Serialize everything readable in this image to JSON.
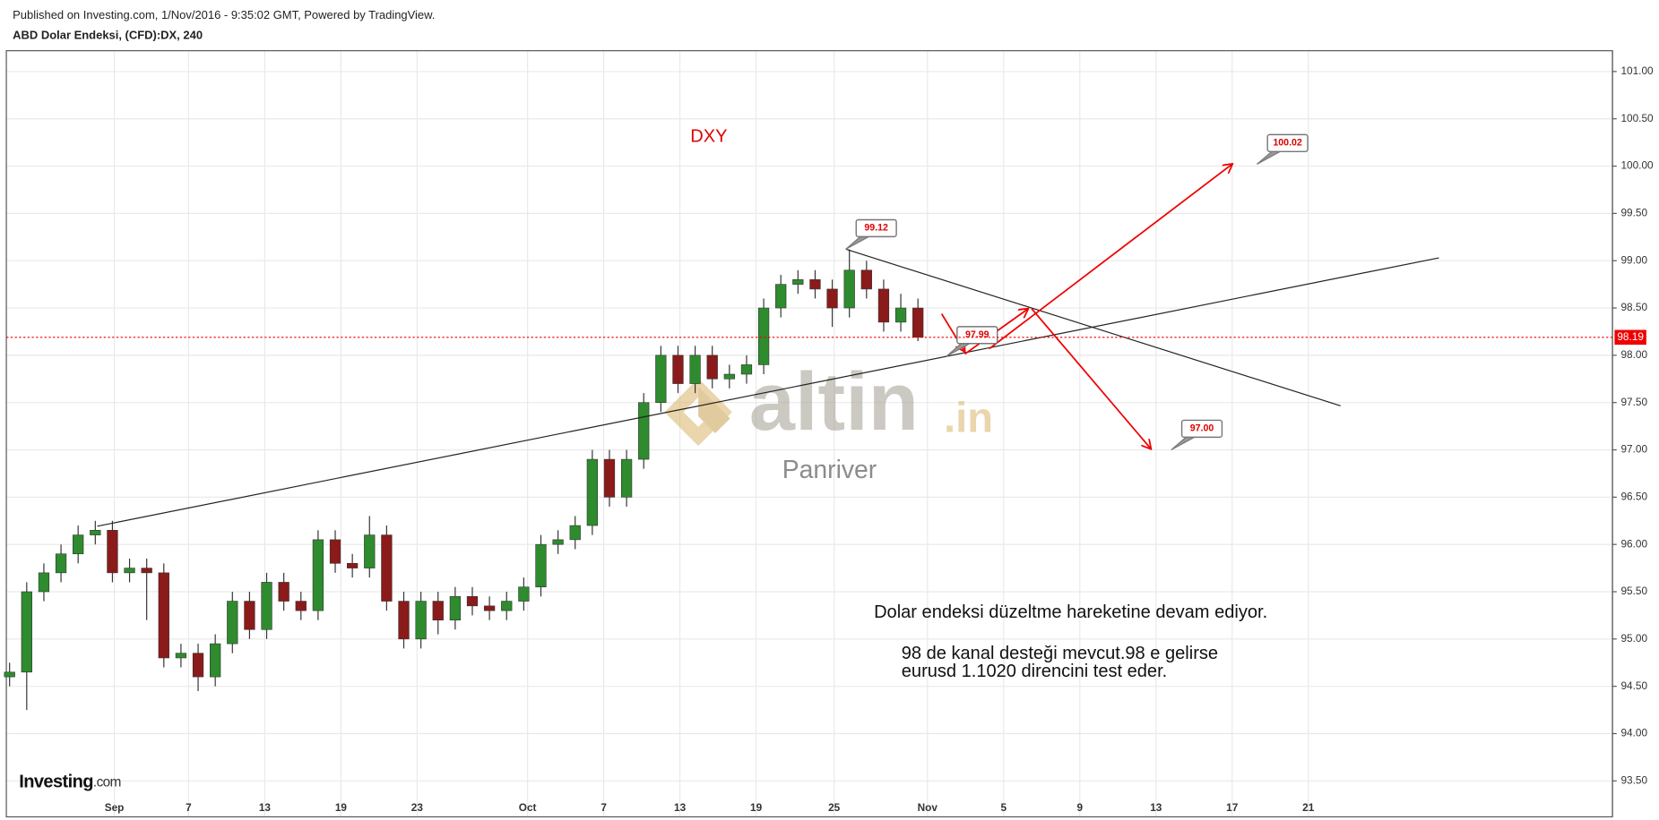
{
  "chart_data": {
    "type": "candlestick",
    "subtitle": "Published on Investing.com, 1/Nov/2016 - 9:35:02 GMT, Powered by TradingView.",
    "title": "ABD Dolar Endeksi, (CFD):DX, 240",
    "symbol_label": "DXY",
    "watermark": "altin",
    "watermark_suffix": ".in",
    "author": "Panriver",
    "comment": [
      "Dolar endeksi düzeltme hareketine devam ediyor.",
      "98 de kanal desteği mevcut.98 e gelirse",
      "eurusd 1.1020 direncini test eder."
    ],
    "logo": "Investing",
    "logo_suffix": ".com",
    "up_color": "#2e8b2e",
    "down_color": "#8b1a1a",
    "grid": true,
    "x": [
      -5.5,
      -4.6,
      -3.7,
      -2.8,
      -1.9,
      -1,
      -0.1,
      0.8,
      1.7,
      2.6,
      3.5,
      4.4,
      5.3,
      6.2,
      7.1,
      8,
      8.9,
      9.8,
      10.7,
      11.6,
      12.5,
      13.4,
      14.3,
      15.2,
      16.1,
      17,
      17.9,
      18.8,
      19.7,
      20.6,
      21.5,
      22.4,
      23.3,
      24.2,
      25.1,
      26,
      26.9,
      27.8,
      28.7,
      29.6,
      30.5,
      31.4,
      32.3,
      33.2,
      34.1,
      35,
      35.9,
      36.8,
      37.7,
      38.6,
      39.5,
      40.4,
      41.3,
      42.2
    ],
    "open": [
      94.6,
      94.65,
      95.5,
      95.7,
      95.9,
      96.1,
      96.15,
      95.7,
      95.75,
      95.7,
      94.8,
      94.85,
      94.6,
      94.95,
      95.4,
      95.1,
      95.6,
      95.4,
      95.3,
      96.05,
      95.8,
      95.75,
      96.1,
      95.4,
      95.0,
      95.4,
      95.2,
      95.45,
      95.35,
      95.3,
      95.4,
      95.55,
      96.0,
      96.05,
      96.2,
      96.9,
      96.5,
      96.9,
      97.5,
      98.0,
      97.7,
      98.0,
      97.75,
      97.8,
      97.9,
      98.5,
      98.75,
      98.8,
      98.7,
      98.5,
      98.9,
      98.7,
      98.35,
      98.5
    ],
    "high": [
      94.75,
      95.6,
      95.8,
      96.0,
      96.2,
      96.25,
      96.25,
      95.85,
      95.85,
      95.8,
      94.95,
      94.95,
      95.05,
      95.5,
      95.5,
      95.7,
      95.7,
      95.5,
      96.15,
      96.15,
      95.9,
      96.3,
      96.2,
      95.5,
      95.5,
      95.5,
      95.55,
      95.55,
      95.45,
      95.5,
      95.65,
      96.1,
      96.15,
      96.3,
      97.0,
      97.0,
      97.0,
      97.6,
      98.1,
      98.1,
      98.1,
      98.1,
      97.9,
      98.0,
      98.6,
      98.85,
      98.9,
      98.9,
      98.8,
      99.12,
      99.0,
      98.8,
      98.65,
      98.6
    ],
    "low": [
      94.5,
      94.25,
      95.4,
      95.6,
      95.8,
      96.0,
      95.6,
      95.6,
      95.2,
      94.7,
      94.7,
      94.45,
      94.5,
      94.85,
      95.0,
      95.0,
      95.3,
      95.2,
      95.2,
      95.7,
      95.65,
      95.65,
      95.3,
      94.9,
      94.9,
      95.05,
      95.1,
      95.25,
      95.2,
      95.2,
      95.3,
      95.45,
      95.9,
      95.95,
      96.1,
      96.4,
      96.4,
      96.8,
      97.4,
      97.6,
      97.6,
      97.65,
      97.65,
      97.7,
      97.8,
      98.4,
      98.65,
      98.6,
      98.3,
      98.4,
      98.6,
      98.25,
      98.25,
      98.15
    ],
    "close": [
      94.65,
      95.5,
      95.7,
      95.9,
      96.1,
      96.15,
      95.7,
      95.75,
      95.7,
      94.8,
      94.85,
      94.6,
      94.95,
      95.4,
      95.1,
      95.6,
      95.4,
      95.3,
      96.05,
      95.8,
      95.75,
      96.1,
      95.4,
      95.0,
      95.4,
      95.2,
      95.45,
      95.35,
      95.3,
      95.4,
      95.55,
      96.0,
      96.05,
      96.2,
      96.9,
      96.5,
      96.9,
      97.5,
      98.0,
      97.7,
      98.0,
      97.75,
      97.8,
      97.9,
      98.5,
      98.75,
      98.8,
      98.7,
      98.5,
      98.9,
      98.7,
      98.35,
      98.5,
      98.19
    ],
    "last_price": 98.19,
    "annotations": [
      {
        "x": 38.4,
        "value": 99.12
      },
      {
        "x": 43.7,
        "value": 97.99
      },
      {
        "x": 60,
        "value": 100.02
      },
      {
        "x": 55.5,
        "value": 97,
        "label": "97.00"
      }
    ],
    "xlim": [
      -5.67,
      78.67
    ],
    "xticks": [
      {
        "value": 0,
        "label": "Sep"
      },
      {
        "value": 3.9,
        "label": "7"
      },
      {
        "value": 7.9,
        "label": "13"
      },
      {
        "value": 11.9,
        "label": "19"
      },
      {
        "value": 15.9,
        "label": "23"
      },
      {
        "value": 21.7,
        "label": "Oct"
      },
      {
        "value": 25.7,
        "label": "7"
      },
      {
        "value": 29.7,
        "label": "13"
      },
      {
        "value": 33.7,
        "label": "19"
      },
      {
        "value": 37.8,
        "label": "25"
      },
      {
        "value": 42.7,
        "label": "Nov"
      },
      {
        "value": 46.7,
        "label": "5"
      },
      {
        "value": 50.7,
        "label": "9"
      },
      {
        "value": 54.7,
        "label": "13"
      },
      {
        "value": 58.7,
        "label": "17"
      },
      {
        "value": 62.7,
        "label": "21"
      }
    ],
    "ylim": [
      93.12,
      101.22
    ],
    "yticks": [
      {
        "value": 93.5,
        "label": "93.50"
      },
      {
        "value": 94,
        "label": "94.00"
      },
      {
        "value": 94.5,
        "label": "94.50"
      },
      {
        "value": 95,
        "label": "95.00"
      },
      {
        "value": 95.5,
        "label": "95.50"
      },
      {
        "value": 96,
        "label": "96.00"
      },
      {
        "value": 96.5,
        "label": "96.50"
      },
      {
        "value": 97,
        "label": "97.00"
      },
      {
        "value": 97.5,
        "label": "97.50"
      },
      {
        "value": 98,
        "label": "98.00"
      },
      {
        "value": 98.5,
        "label": "98.50"
      },
      {
        "value": 99,
        "label": "99.00"
      },
      {
        "value": 99.5,
        "label": "99.50"
      },
      {
        "value": 100,
        "label": "100.00"
      },
      {
        "value": 100.5,
        "label": "100.50"
      },
      {
        "value": 101,
        "label": "101.00"
      }
    ]
  }
}
